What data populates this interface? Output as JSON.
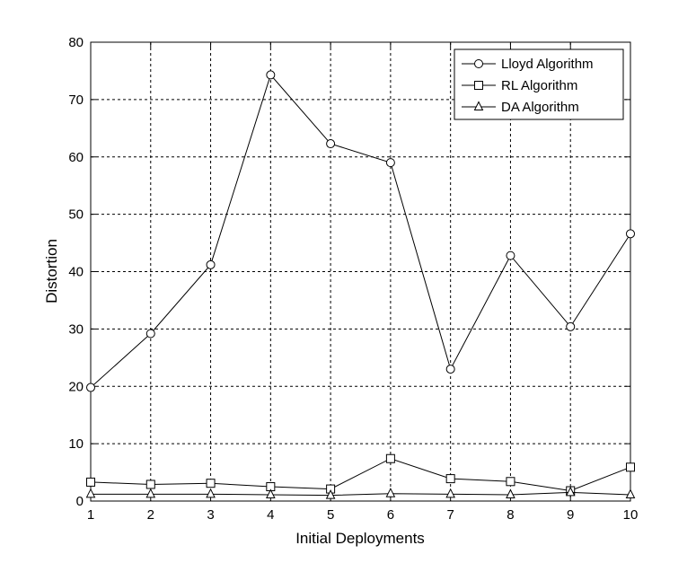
{
  "chart_data": {
    "type": "line",
    "xlabel": "Initial Deployments",
    "ylabel": "Distortion",
    "xlim": [
      1,
      10
    ],
    "ylim": [
      0,
      80
    ],
    "x": [
      1,
      2,
      3,
      4,
      5,
      6,
      7,
      8,
      9,
      10
    ],
    "xticks": [
      "1",
      "2",
      "3",
      "4",
      "5",
      "6",
      "7",
      "8",
      "9",
      "10"
    ],
    "yticks": [
      "0",
      "10",
      "20",
      "30",
      "40",
      "50",
      "60",
      "70",
      "80"
    ],
    "grid": true,
    "legend_position": "top-right",
    "series": [
      {
        "name": "Lloyd Algorithm",
        "marker": "circle",
        "values": [
          19.8,
          29.2,
          41.2,
          74.3,
          62.3,
          59.0,
          23.0,
          42.8,
          30.4,
          46.6
        ]
      },
      {
        "name": "RL Algorithm",
        "marker": "square",
        "values": [
          3.3,
          2.9,
          3.1,
          2.5,
          2.1,
          7.4,
          3.9,
          3.4,
          1.8,
          5.9
        ]
      },
      {
        "name": "DA Algorithm",
        "marker": "triangle",
        "values": [
          1.2,
          1.2,
          1.2,
          1.1,
          1.0,
          1.3,
          1.2,
          1.1,
          1.5,
          1.1
        ]
      }
    ]
  }
}
